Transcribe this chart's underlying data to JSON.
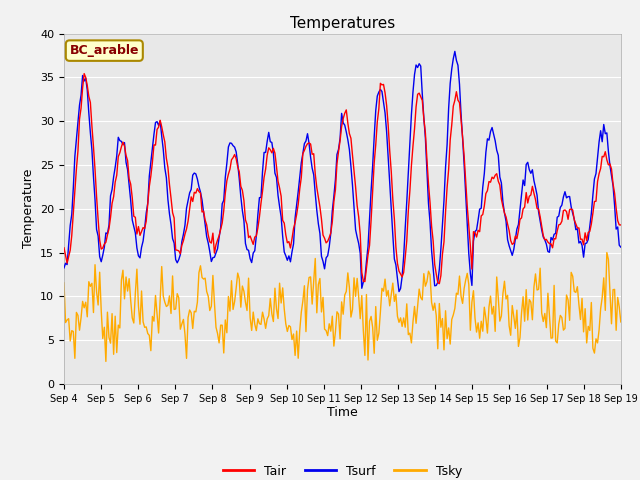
{
  "title": "Temperatures",
  "xlabel": "Time",
  "ylabel": "Temperature",
  "annotation": "BC_arable",
  "ylim": [
    0,
    40
  ],
  "yticks": [
    0,
    5,
    10,
    15,
    20,
    25,
    30,
    35,
    40
  ],
  "legend": [
    "Tair",
    "Tsurf",
    "Tsky"
  ],
  "colors": {
    "Tair": "#ff0000",
    "Tsurf": "#0000ee",
    "Tsky": "#ffaa00"
  },
  "plot_bg": "#e8e8e8",
  "fig_bg": "#f2f2f2",
  "x_ticks": [
    "Sep 4",
    "Sep 5",
    "Sep 6",
    "Sep 7",
    "Sep 8",
    "Sep 9",
    "Sep 10",
    "Sep 11",
    "Sep 12",
    "Sep 13",
    "Sep 14",
    "Sep 15",
    "Sep 16",
    "Sep 17",
    "Sep 18",
    "Sep 19"
  ],
  "annotation_facecolor": "#ffffcc",
  "annotation_edgecolor": "#aa8800",
  "annotation_textcolor": "#880000"
}
